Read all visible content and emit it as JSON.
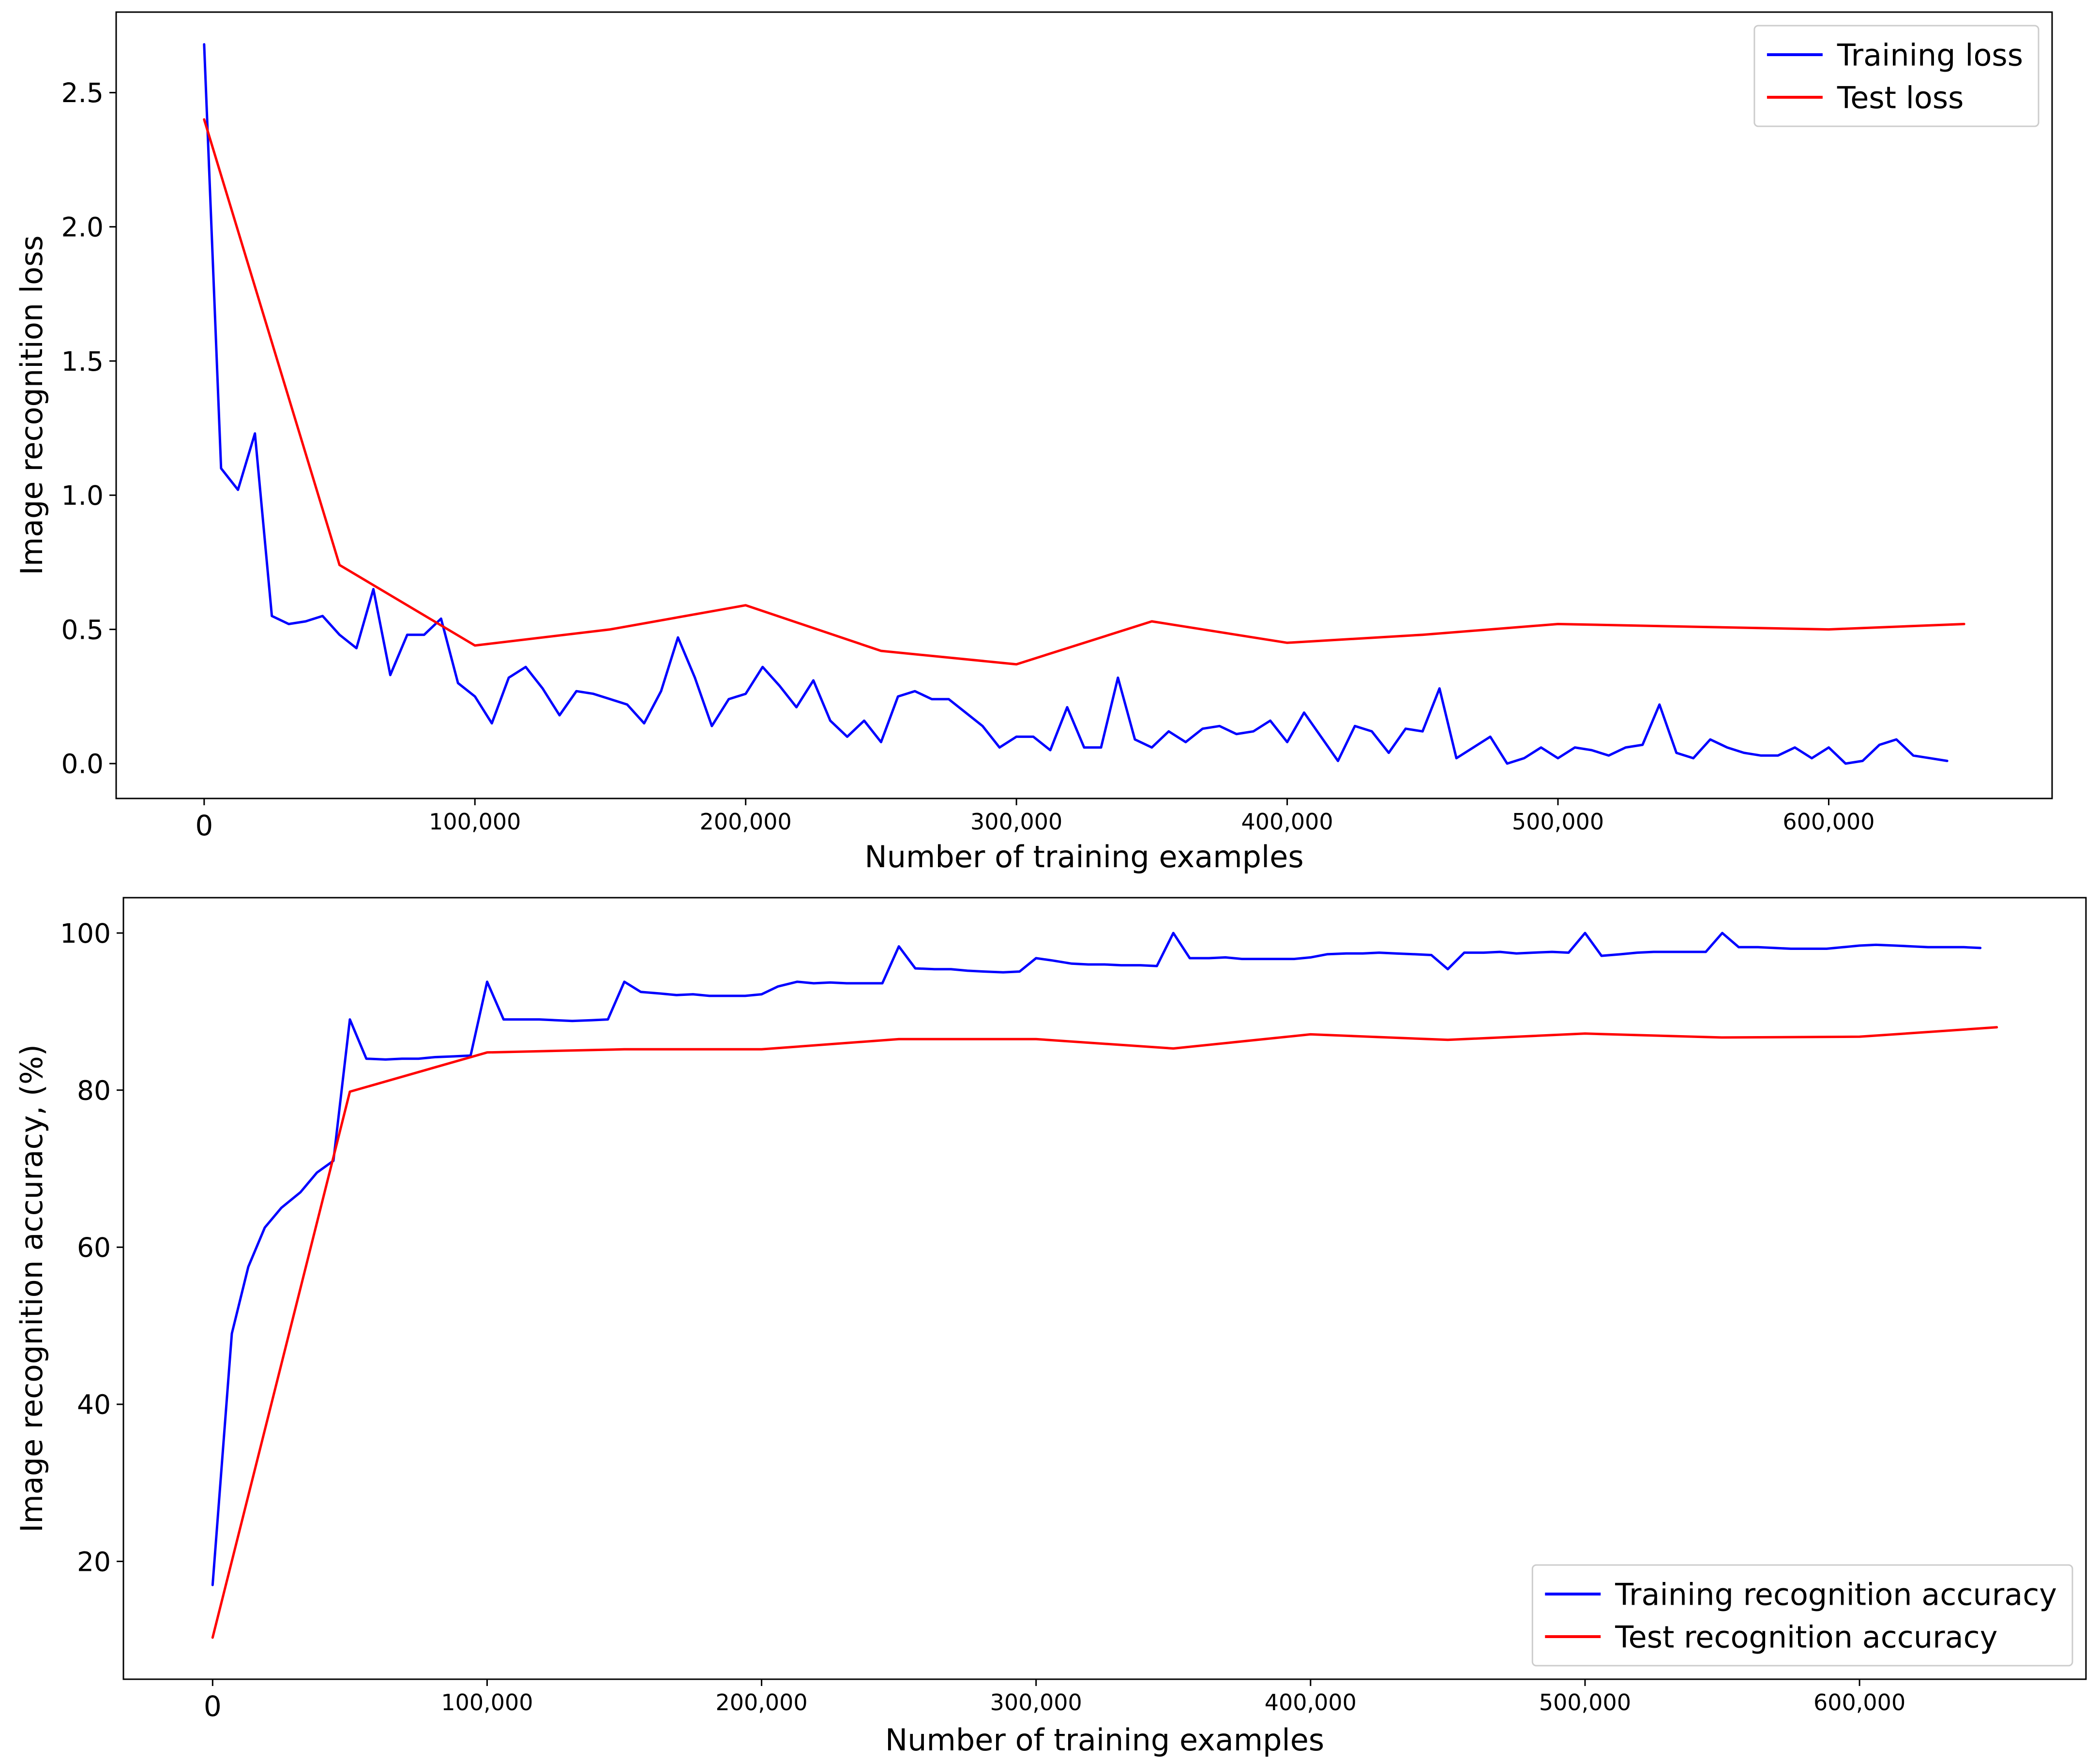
{
  "chart_data": [
    {
      "type": "line",
      "xlabel": "Number of training examples",
      "ylabel": "Image recognition loss",
      "xlim": [
        -32500,
        682500
      ],
      "ylim": [
        -0.13,
        2.8
      ],
      "x_ticks": [
        {
          "value": 0,
          "label": "0"
        },
        {
          "value": 100000,
          "label": "100,000"
        },
        {
          "value": 200000,
          "label": "200,000"
        },
        {
          "value": 300000,
          "label": "300,000"
        },
        {
          "value": 400000,
          "label": "400,000"
        },
        {
          "value": 500000,
          "label": "500,000"
        },
        {
          "value": 600000,
          "label": "600,000"
        }
      ],
      "y_ticks": [
        {
          "value": 0.0,
          "label": "0.0"
        },
        {
          "value": 0.5,
          "label": "0.5"
        },
        {
          "value": 1.0,
          "label": "1.0"
        },
        {
          "value": 1.5,
          "label": "1.5"
        },
        {
          "value": 2.0,
          "label": "2.0"
        },
        {
          "value": 2.5,
          "label": "2.5"
        }
      ],
      "legend_position": "top-right",
      "series": [
        {
          "name": "Training loss",
          "color": "#0000ff",
          "x": [
            0,
            6250,
            12500,
            18750,
            25000,
            31250,
            37500,
            43750,
            50000,
            56250,
            62500,
            68750,
            75000,
            81250,
            87500,
            93750,
            100000,
            106250,
            112500,
            118750,
            125000,
            131250,
            137500,
            143750,
            150000,
            156250,
            162500,
            168750,
            175000,
            181250,
            187500,
            193750,
            200000,
            206250,
            212500,
            218750,
            225000,
            231250,
            237500,
            243750,
            250000,
            256250,
            262500,
            268750,
            275000,
            281250,
            287500,
            293750,
            300000,
            306250,
            312500,
            318750,
            325000,
            331250,
            337500,
            343750,
            350000,
            356250,
            362500,
            368750,
            375000,
            381250,
            387500,
            393750,
            400000,
            406250,
            412500,
            418750,
            425000,
            431250,
            437500,
            443750,
            450000,
            456250,
            462500,
            468750,
            475000,
            481250,
            487500,
            493750,
            500000,
            506250,
            512500,
            518750,
            525000,
            531250,
            537500,
            543750,
            550000,
            556250,
            562500,
            568750,
            575000,
            581250,
            587500,
            593750,
            600000,
            606250,
            612500,
            618750,
            625000,
            631250,
            637500,
            643750
          ],
          "y": [
            2.68,
            1.1,
            1.02,
            1.23,
            0.55,
            0.52,
            0.53,
            0.55,
            0.48,
            0.43,
            0.65,
            0.33,
            0.48,
            0.48,
            0.54,
            0.3,
            0.25,
            0.15,
            0.32,
            0.36,
            0.28,
            0.18,
            0.27,
            0.26,
            0.24,
            0.22,
            0.15,
            0.27,
            0.47,
            0.32,
            0.14,
            0.24,
            0.26,
            0.36,
            0.29,
            0.21,
            0.31,
            0.16,
            0.1,
            0.16,
            0.08,
            0.25,
            0.27,
            0.24,
            0.24,
            0.19,
            0.14,
            0.06,
            0.1,
            0.1,
            0.05,
            0.21,
            0.06,
            0.06,
            0.32,
            0.09,
            0.06,
            0.12,
            0.08,
            0.13,
            0.14,
            0.11,
            0.12,
            0.16,
            0.08,
            0.19,
            0.1,
            0.01,
            0.14,
            0.12,
            0.04,
            0.13,
            0.12,
            0.28,
            0.02,
            0.06,
            0.1,
            0.0,
            0.02,
            0.06,
            0.02,
            0.06,
            0.05,
            0.03,
            0.06,
            0.07,
            0.22,
            0.04,
            0.02,
            0.09,
            0.06,
            0.04,
            0.03,
            0.03,
            0.06,
            0.02,
            0.06,
            0.0,
            0.01,
            0.07,
            0.09,
            0.03,
            0.02,
            0.01
          ]
        },
        {
          "name": "Test loss",
          "color": "#ff0000",
          "x": [
            0,
            50000,
            100000,
            150000,
            200000,
            250000,
            300000,
            350000,
            400000,
            450000,
            500000,
            550000,
            600000,
            650000
          ],
          "y": [
            2.4,
            0.74,
            0.44,
            0.5,
            0.59,
            0.42,
            0.37,
            0.53,
            0.45,
            0.48,
            0.52,
            0.51,
            0.5,
            0.52
          ]
        }
      ]
    },
    {
      "type": "line",
      "xlabel": "Number of training examples",
      "ylabel": "Image recognition accuracy, (%)",
      "xlim": [
        -32500,
        682500
      ],
      "ylim": [
        5,
        104.5
      ],
      "x_ticks": [
        {
          "value": 0,
          "label": "0"
        },
        {
          "value": 100000,
          "label": "100,000"
        },
        {
          "value": 200000,
          "label": "200,000"
        },
        {
          "value": 300000,
          "label": "300,000"
        },
        {
          "value": 400000,
          "label": "400,000"
        },
        {
          "value": 500000,
          "label": "500,000"
        },
        {
          "value": 600000,
          "label": "600,000"
        }
      ],
      "y_ticks": [
        {
          "value": 20,
          "label": "20"
        },
        {
          "value": 40,
          "label": "40"
        },
        {
          "value": 60,
          "label": "60"
        },
        {
          "value": 80,
          "label": "80"
        },
        {
          "value": 100,
          "label": "100"
        }
      ],
      "legend_position": "bottom-right",
      "series": [
        {
          "name": "Training recognition accuracy",
          "color": "#0000ff",
          "x": [
            0,
            7000,
            13000,
            19000,
            25000,
            32000,
            38000,
            44000,
            50000,
            56000,
            63000,
            69000,
            75000,
            81000,
            88000,
            94000,
            100000,
            106000,
            113000,
            119000,
            125000,
            131000,
            138000,
            144000,
            150000,
            156000,
            163000,
            169000,
            175000,
            181000,
            188000,
            194000,
            200000,
            206000,
            213000,
            219000,
            225000,
            231000,
            238000,
            244000,
            250000,
            256000,
            263000,
            269000,
            275000,
            281000,
            288000,
            294000,
            300000,
            306000,
            313000,
            319000,
            325000,
            331000,
            338000,
            344000,
            350000,
            356000,
            363000,
            369000,
            375000,
            381000,
            388000,
            394000,
            400000,
            406000,
            413000,
            419000,
            425000,
            431000,
            438000,
            444000,
            450000,
            456000,
            463000,
            469000,
            475000,
            481000,
            488000,
            494000,
            500000,
            506000,
            513000,
            519000,
            525000,
            531000,
            538000,
            544000,
            550000,
            556000,
            563000,
            569000,
            575000,
            581000,
            588000,
            594000,
            600000,
            606000,
            613000,
            619000,
            625000,
            631000,
            638000,
            644000
          ],
          "y": [
            17,
            49,
            57.5,
            62.5,
            65,
            67,
            69.5,
            71,
            89,
            84,
            83.9,
            84,
            84,
            84.2,
            84.3,
            84.4,
            93.8,
            89,
            89,
            89,
            88.9,
            88.8,
            88.9,
            89,
            93.8,
            92.5,
            92.3,
            92.1,
            92.2,
            92,
            92,
            92,
            92.2,
            93.2,
            93.8,
            93.6,
            93.7,
            93.6,
            93.6,
            93.6,
            98.3,
            95.5,
            95.4,
            95.4,
            95.2,
            95.1,
            95,
            95.1,
            96.8,
            96.5,
            96.1,
            96,
            96,
            95.9,
            95.9,
            95.8,
            100,
            96.8,
            96.8,
            96.9,
            96.7,
            96.7,
            96.7,
            96.7,
            96.9,
            97.3,
            97.4,
            97.4,
            97.5,
            97.4,
            97.3,
            97.2,
            95.4,
            97.5,
            97.5,
            97.6,
            97.4,
            97.5,
            97.6,
            97.5,
            100,
            97.1,
            97.3,
            97.5,
            97.6,
            97.6,
            97.6,
            97.6,
            100,
            98.2,
            98.2,
            98.1,
            98,
            98,
            98,
            98.2,
            98.4,
            98.5,
            98.4,
            98.3,
            98.2,
            98.2,
            98.2,
            98.1
          ]
        },
        {
          "name": "Test recognition accuracy",
          "color": "#ff0000",
          "x": [
            0,
            50000,
            100000,
            150000,
            200000,
            250000,
            300000,
            350000,
            400000,
            450000,
            500000,
            550000,
            600000,
            650000
          ],
          "y": [
            10.3,
            79.8,
            84.8,
            85.2,
            85.2,
            86.5,
            86.5,
            85.3,
            87.1,
            86.4,
            87.2,
            86.7,
            86.8,
            88
          ]
        }
      ]
    }
  ]
}
